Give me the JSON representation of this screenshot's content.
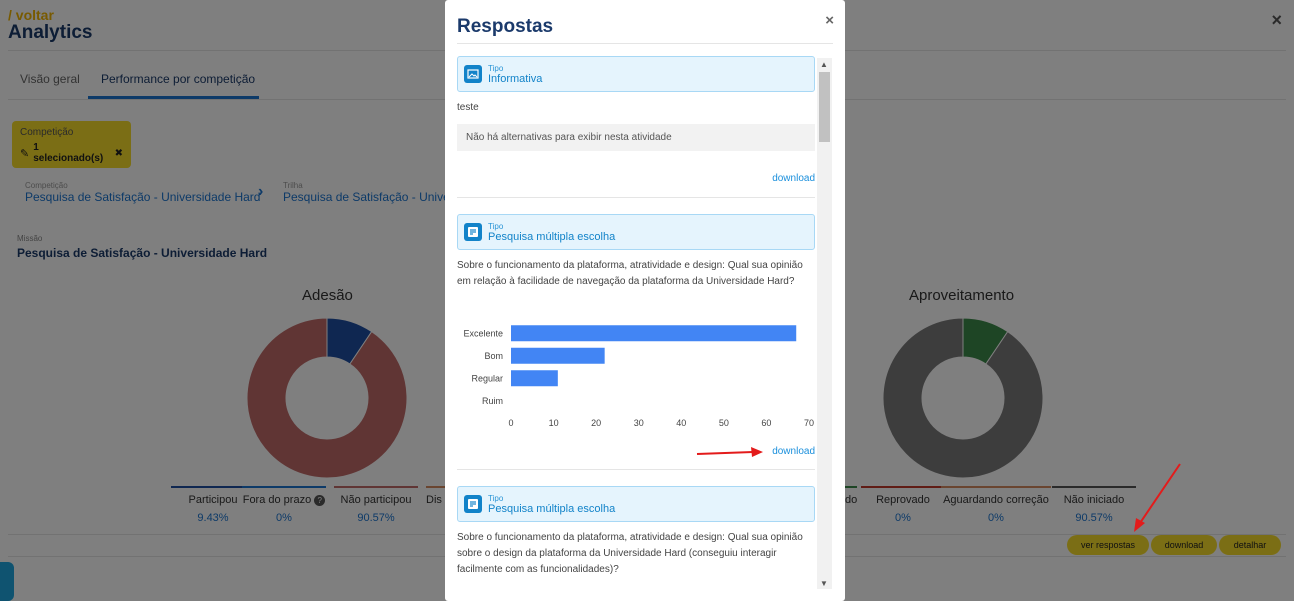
{
  "page": {
    "back_link": "/ voltar",
    "title": "Analytics",
    "close": "×",
    "tabs": [
      "Visão geral",
      "Performance por competição"
    ]
  },
  "filter": {
    "label": "Competição",
    "value": "1 selecionado(s)",
    "clear": "✖"
  },
  "breadcrumb": {
    "competition_label": "Competição",
    "competition": "Pesquisa de Satisfação - Universidade Hard",
    "trail_label": "Trilha",
    "trail": "Pesquisa de Satisfação - Univers"
  },
  "mission": {
    "label": "Missão",
    "title": "Pesquisa de Satisfação - Universidade Hard"
  },
  "adesao": {
    "title": "Adesão",
    "slices": [
      {
        "name": "Participou",
        "percent": 9.43,
        "color": "#1f4fa3"
      },
      {
        "name": "Fora do prazo",
        "percent": 0,
        "color": "#888888"
      },
      {
        "name": "Não participou",
        "percent": 90.57,
        "color": "#c06a69"
      }
    ],
    "legend": [
      {
        "name": "Participou",
        "value": "9.43%",
        "color": "#1f4fa3"
      },
      {
        "name": "Fora do prazo",
        "value": "0%",
        "color": "#1a74d0",
        "icon": "question-circle-icon"
      },
      {
        "name": "Não participou",
        "value": "90.57%",
        "color": "#c06a69"
      },
      {
        "name": "Dis",
        "value": "",
        "color": "#d48a60"
      }
    ]
  },
  "aproveitamento": {
    "title": "Aproveitamento",
    "slices": [
      {
        "name": "Aprovado",
        "percent": 9.43,
        "color": "#3d8a4a"
      },
      {
        "name": "Não iniciado",
        "percent": 90.57,
        "color": "#7a7a7a"
      }
    ],
    "legend": [
      {
        "name": "do",
        "value": "",
        "color": "#3d8a4a"
      },
      {
        "name": "Reprovado",
        "value": "0%",
        "color": "#c0392b"
      },
      {
        "name": "Aguardando correção",
        "value": "0%",
        "color": "#d48a60"
      },
      {
        "name": "Não iniciado",
        "value": "90.57%",
        "color": "#555555"
      }
    ]
  },
  "actions": {
    "ver_respostas": "ver respostas",
    "download": "download",
    "detalhar": "detalhar"
  },
  "modal": {
    "title": "Respostas",
    "close": "×",
    "questions": [
      {
        "type_label": "Tipo",
        "type": "Informativa",
        "icon": "image-icon",
        "text": "teste",
        "no_alternatives": "Não há alternativas para exibir nesta atividade",
        "download": "download"
      },
      {
        "type_label": "Tipo",
        "type": "Pesquisa múltipla escolha",
        "icon": "list-icon",
        "text": "Sobre o funcionamento da plataforma, atratividade e design: Qual sua opinião em relação à facilidade de navegação da plataforma da Universidade Hard?",
        "download": "download"
      },
      {
        "type_label": "Tipo",
        "type": "Pesquisa múltipla escolha",
        "icon": "list-icon",
        "text": "Sobre o funcionamento da plataforma, atratividade e design: Qual sua opinião sobre o design da plataforma da Universidade Hard (conseguiu interagir facilmente com as funcionalidades)?"
      }
    ]
  },
  "chart_data": {
    "type": "bar",
    "orientation": "horizontal",
    "categories": [
      "Excelente",
      "Bom",
      "Regular",
      "Ruim"
    ],
    "values": [
      67,
      22,
      11,
      0
    ],
    "xlim": [
      0,
      70
    ],
    "xticks": [
      0,
      10,
      20,
      30,
      40,
      50,
      60,
      70
    ],
    "bar_color": "#4285f4",
    "grid": false
  }
}
